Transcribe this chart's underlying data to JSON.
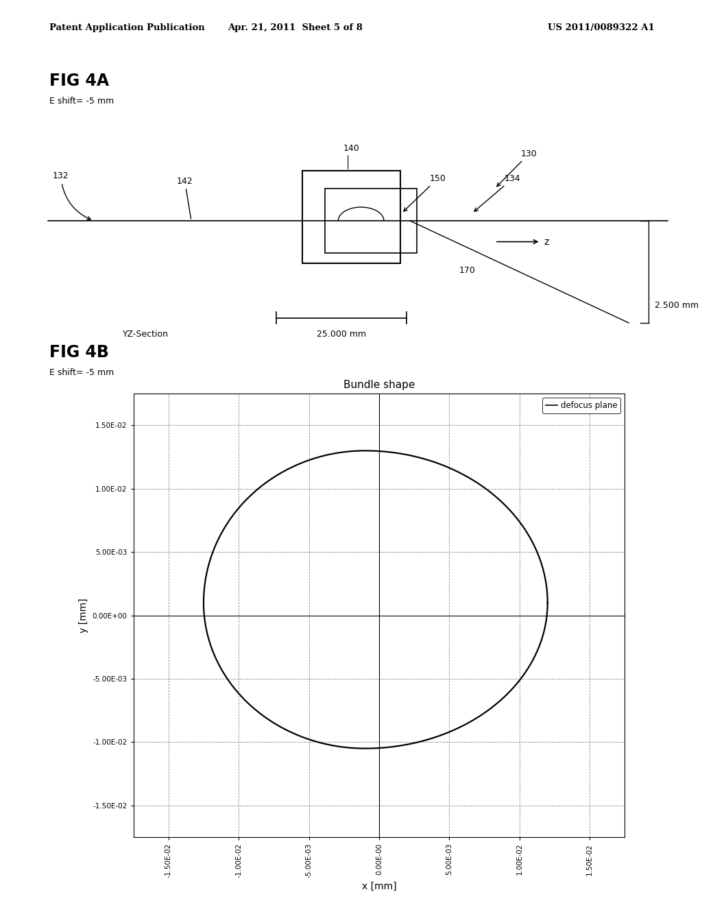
{
  "background_color": "#ffffff",
  "header_left": "Patent Application Publication",
  "header_center": "Apr. 21, 2011  Sheet 5 of 8",
  "header_right": "US 2011/0089322 A1",
  "fig4a_title": "FIG 4A",
  "fig4a_subtitle": "E shift= -5 mm",
  "fig4b_title": "FIG 4B",
  "fig4b_subtitle": "E shift= -5 mm",
  "fig4b_plot_title": "Bundle shape",
  "fig4b_xlabel": "x [mm]",
  "fig4b_ylabel": "y [mm]",
  "fig4b_legend": "defocus plane",
  "xtick_labels": [
    "-1.50E-02",
    "-1.00E-02",
    "-5.00E-03",
    "0.00E-00",
    "5.00E-03",
    "1.00E-02",
    "1.50E-02"
  ],
  "ytick_labels": [
    "-1.50E-02",
    "-1.00E-02",
    "-5.00E-03",
    "0.00E+00",
    "5.00E-03",
    "1.00E-02",
    "1.50E-02"
  ],
  "xtick_vals": [
    -0.015,
    -0.01,
    -0.005,
    0.0,
    0.005,
    0.01,
    0.015
  ],
  "ytick_vals": [
    -0.015,
    -0.01,
    -0.005,
    0.0,
    0.005,
    0.01,
    0.015
  ],
  "xlim": [
    -0.0175,
    0.0175
  ],
  "ylim": [
    -0.0175,
    0.0175
  ]
}
